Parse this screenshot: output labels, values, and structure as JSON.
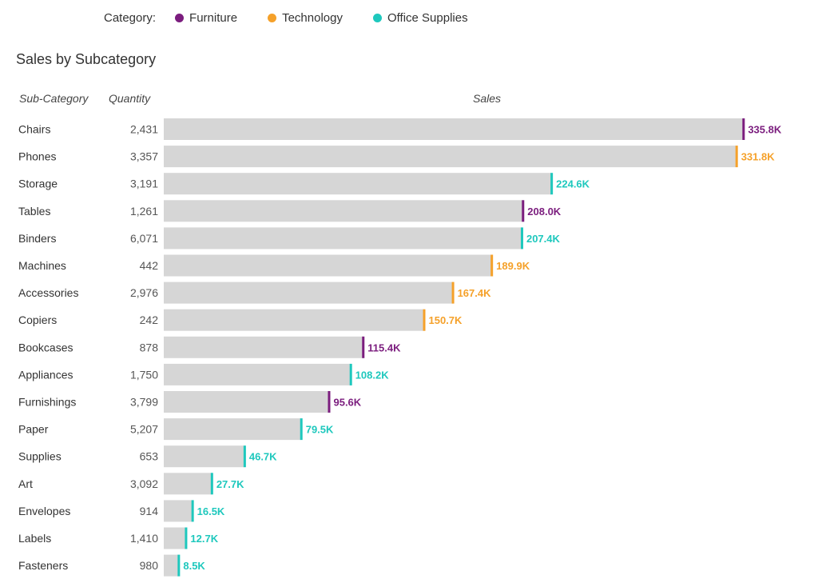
{
  "legend": {
    "title": "Category:",
    "items": [
      {
        "label": "Furniture",
        "color": "#7b1d7e"
      },
      {
        "label": "Technology",
        "color": "#f5a12a"
      },
      {
        "label": "Office Supplies",
        "color": "#1ec8bd"
      }
    ]
  },
  "chart_data": {
    "type": "bar",
    "orientation": "horizontal",
    "title": "Sales by Subcategory",
    "column_headers": {
      "subcategory": "Sub-Category",
      "quantity": "Quantity",
      "sales": "Sales"
    },
    "xlim": [
      0,
      340
    ],
    "value_unit": "K",
    "bar_color": "#d6d6d6",
    "category_colors": {
      "Furniture": "#7b1d7e",
      "Technology": "#f5a12a",
      "Office Supplies": "#1ec8bd"
    },
    "rows": [
      {
        "subcategory": "Chairs",
        "quantity": "2,431",
        "sales": 335.8,
        "label": "335.8K",
        "category": "Furniture"
      },
      {
        "subcategory": "Phones",
        "quantity": "3,357",
        "sales": 331.8,
        "label": "331.8K",
        "category": "Technology"
      },
      {
        "subcategory": "Storage",
        "quantity": "3,191",
        "sales": 224.6,
        "label": "224.6K",
        "category": "Office Supplies"
      },
      {
        "subcategory": "Tables",
        "quantity": "1,261",
        "sales": 208.0,
        "label": "208.0K",
        "category": "Furniture"
      },
      {
        "subcategory": "Binders",
        "quantity": "6,071",
        "sales": 207.4,
        "label": "207.4K",
        "category": "Office Supplies"
      },
      {
        "subcategory": "Machines",
        "quantity": "442",
        "sales": 189.9,
        "label": "189.9K",
        "category": "Technology"
      },
      {
        "subcategory": "Accessories",
        "quantity": "2,976",
        "sales": 167.4,
        "label": "167.4K",
        "category": "Technology"
      },
      {
        "subcategory": "Copiers",
        "quantity": "242",
        "sales": 150.7,
        "label": "150.7K",
        "category": "Technology"
      },
      {
        "subcategory": "Bookcases",
        "quantity": "878",
        "sales": 115.4,
        "label": "115.4K",
        "category": "Furniture"
      },
      {
        "subcategory": "Appliances",
        "quantity": "1,750",
        "sales": 108.2,
        "label": "108.2K",
        "category": "Office Supplies"
      },
      {
        "subcategory": "Furnishings",
        "quantity": "3,799",
        "sales": 95.6,
        "label": "95.6K",
        "category": "Furniture"
      },
      {
        "subcategory": "Paper",
        "quantity": "5,207",
        "sales": 79.5,
        "label": "79.5K",
        "category": "Office Supplies"
      },
      {
        "subcategory": "Supplies",
        "quantity": "653",
        "sales": 46.7,
        "label": "46.7K",
        "category": "Office Supplies"
      },
      {
        "subcategory": "Art",
        "quantity": "3,092",
        "sales": 27.7,
        "label": "27.7K",
        "category": "Office Supplies"
      },
      {
        "subcategory": "Envelopes",
        "quantity": "914",
        "sales": 16.5,
        "label": "16.5K",
        "category": "Office Supplies"
      },
      {
        "subcategory": "Labels",
        "quantity": "1,410",
        "sales": 12.7,
        "label": "12.7K",
        "category": "Office Supplies"
      },
      {
        "subcategory": "Fasteners",
        "quantity": "980",
        "sales": 8.5,
        "label": "8.5K",
        "category": "Office Supplies"
      }
    ]
  }
}
